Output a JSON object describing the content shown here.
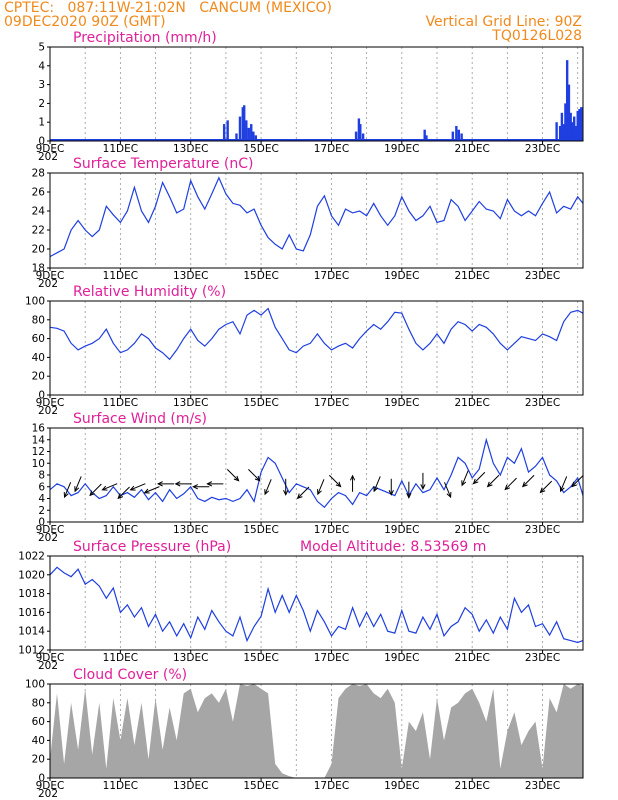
{
  "header": {
    "line1_left": "CPTEC:   087:11W-21:02N   CANCUM (MEXICO)",
    "line2_left": "09DEC2020 90Z (GMT)",
    "line2_right": "Vertical Grid Line: 90Z",
    "line3_right": "TQ0126L028"
  },
  "colors": {
    "header": "#f08a1c",
    "title": "#e0209a",
    "line": "#1f3fe0",
    "cloud": "#a6a6a6",
    "arrow": "#000000"
  },
  "x_tick_labels": [
    "9DEC",
    "11DEC",
    "13DEC",
    "15DEC",
    "17DEC",
    "19DEC",
    "21DEC",
    "23DEC"
  ],
  "x_tick_days": [
    9,
    11,
    13,
    15,
    17,
    19,
    21,
    23
  ],
  "x_range_days": [
    9,
    24.15
  ],
  "year_fragment": "202",
  "chart_data": [
    {
      "type": "bar",
      "title": "Precipitation (mm/h)",
      "ylim": [
        0,
        5
      ],
      "yticks": [
        0,
        1,
        2,
        3,
        4,
        5
      ],
      "yticks_labels": [
        "0",
        "1",
        "2",
        "3",
        "4",
        "5"
      ],
      "events": [
        {
          "x": 13.95,
          "y": 0.9
        },
        {
          "x": 14.05,
          "y": 1.1
        },
        {
          "x": 14.3,
          "y": 0.4
        },
        {
          "x": 14.4,
          "y": 1.3
        },
        {
          "x": 14.48,
          "y": 1.8
        },
        {
          "x": 14.52,
          "y": 1.9
        },
        {
          "x": 14.58,
          "y": 1.1
        },
        {
          "x": 14.65,
          "y": 0.7
        },
        {
          "x": 14.72,
          "y": 0.9
        },
        {
          "x": 14.78,
          "y": 0.5
        },
        {
          "x": 14.85,
          "y": 0.3
        },
        {
          "x": 17.7,
          "y": 0.5
        },
        {
          "x": 17.78,
          "y": 1.2
        },
        {
          "x": 17.82,
          "y": 0.9
        },
        {
          "x": 17.9,
          "y": 0.4
        },
        {
          "x": 19.65,
          "y": 0.6
        },
        {
          "x": 19.7,
          "y": 0.3
        },
        {
          "x": 20.45,
          "y": 0.5
        },
        {
          "x": 20.55,
          "y": 0.8
        },
        {
          "x": 20.62,
          "y": 0.6
        },
        {
          "x": 20.7,
          "y": 0.4
        },
        {
          "x": 23.4,
          "y": 1.0
        },
        {
          "x": 23.5,
          "y": 0.8
        },
        {
          "x": 23.55,
          "y": 1.5
        },
        {
          "x": 23.6,
          "y": 0.9
        },
        {
          "x": 23.65,
          "y": 2.0
        },
        {
          "x": 23.7,
          "y": 4.3
        },
        {
          "x": 23.75,
          "y": 3.0
        },
        {
          "x": 23.8,
          "y": 1.5
        },
        {
          "x": 23.85,
          "y": 1.0
        },
        {
          "x": 23.9,
          "y": 1.3
        },
        {
          "x": 23.95,
          "y": 0.8
        },
        {
          "x": 24.0,
          "y": 1.6
        },
        {
          "x": 24.05,
          "y": 1.7
        },
        {
          "x": 24.1,
          "y": 1.8
        }
      ]
    },
    {
      "type": "line",
      "title": "Surface Temperature (nC)",
      "ylim": [
        18,
        28
      ],
      "yticks": [
        18,
        20,
        22,
        24,
        26,
        28
      ],
      "yticks_labels": [
        "18",
        "20",
        "22",
        "24",
        "26",
        "28"
      ],
      "x": [
        9.0,
        9.2,
        9.4,
        9.6,
        9.8,
        10.0,
        10.2,
        10.4,
        10.6,
        10.8,
        11.0,
        11.2,
        11.4,
        11.6,
        11.8,
        12.0,
        12.2,
        12.4,
        12.6,
        12.8,
        13.0,
        13.2,
        13.4,
        13.6,
        13.8,
        14.0,
        14.2,
        14.4,
        14.6,
        14.8,
        15.0,
        15.2,
        15.4,
        15.6,
        15.8,
        16.0,
        16.2,
        16.4,
        16.6,
        16.8,
        17.0,
        17.2,
        17.4,
        17.6,
        17.8,
        18.0,
        18.2,
        18.4,
        18.6,
        18.8,
        19.0,
        19.2,
        19.4,
        19.6,
        19.8,
        20.0,
        20.2,
        20.4,
        20.6,
        20.8,
        21.0,
        21.2,
        21.4,
        21.6,
        21.8,
        22.0,
        22.2,
        22.4,
        22.6,
        22.8,
        23.0,
        23.2,
        23.4,
        23.6,
        23.8,
        24.0,
        24.15
      ],
      "y": [
        19.2,
        19.6,
        20.0,
        22.0,
        23.0,
        22.0,
        21.3,
        22.0,
        24.5,
        23.6,
        22.8,
        24.0,
        26.5,
        24.0,
        22.8,
        24.5,
        27.0,
        25.5,
        23.8,
        24.2,
        27.2,
        25.5,
        24.2,
        25.8,
        27.5,
        25.8,
        24.8,
        24.6,
        23.8,
        24.2,
        22.5,
        21.2,
        20.5,
        20.0,
        21.5,
        20.0,
        19.8,
        21.5,
        24.5,
        25.6,
        23.5,
        22.5,
        24.2,
        23.8,
        24.0,
        23.5,
        24.8,
        23.5,
        22.5,
        23.5,
        25.5,
        24.0,
        23.0,
        23.5,
        24.5,
        22.8,
        23.0,
        25.2,
        24.5,
        23.0,
        24.0,
        25.0,
        24.2,
        24.0,
        23.2,
        25.2,
        24.0,
        23.5,
        24.0,
        23.5,
        24.8,
        26.0,
        23.8,
        24.5,
        24.2,
        25.5,
        24.8
      ]
    },
    {
      "type": "line",
      "title": "Relative Humidity (%)",
      "ylim": [
        0,
        100
      ],
      "yticks": [
        0,
        20,
        40,
        60,
        80,
        100
      ],
      "yticks_labels": [
        "0",
        "20",
        "40",
        "60",
        "80",
        "100"
      ],
      "x": [
        9.0,
        9.2,
        9.4,
        9.6,
        9.8,
        10.0,
        10.2,
        10.4,
        10.6,
        10.8,
        11.0,
        11.2,
        11.4,
        11.6,
        11.8,
        12.0,
        12.2,
        12.4,
        12.6,
        12.8,
        13.0,
        13.2,
        13.4,
        13.6,
        13.8,
        14.0,
        14.2,
        14.4,
        14.6,
        14.8,
        15.0,
        15.2,
        15.4,
        15.6,
        15.8,
        16.0,
        16.2,
        16.4,
        16.6,
        16.8,
        17.0,
        17.2,
        17.4,
        17.6,
        17.8,
        18.0,
        18.2,
        18.4,
        18.6,
        18.8,
        19.0,
        19.2,
        19.4,
        19.6,
        19.8,
        20.0,
        20.2,
        20.4,
        20.6,
        20.8,
        21.0,
        21.2,
        21.4,
        21.6,
        21.8,
        22.0,
        22.2,
        22.4,
        22.6,
        22.8,
        23.0,
        23.2,
        23.4,
        23.6,
        23.8,
        24.0,
        24.15
      ],
      "y": [
        72,
        71,
        68,
        55,
        48,
        52,
        55,
        60,
        70,
        55,
        45,
        48,
        55,
        65,
        60,
        50,
        45,
        38,
        48,
        60,
        70,
        58,
        52,
        60,
        70,
        75,
        78,
        65,
        85,
        90,
        85,
        92,
        72,
        60,
        48,
        45,
        52,
        55,
        65,
        55,
        48,
        52,
        55,
        50,
        60,
        68,
        75,
        70,
        78,
        88,
        87,
        70,
        55,
        48,
        55,
        65,
        55,
        70,
        78,
        75,
        68,
        75,
        72,
        65,
        55,
        48,
        55,
        62,
        60,
        58,
        65,
        62,
        58,
        78,
        88,
        90,
        87
      ]
    },
    {
      "type": "line",
      "title": "Surface Wind (m/s)",
      "ylim": [
        0,
        16
      ],
      "yticks": [
        0,
        2,
        4,
        6,
        8,
        10,
        12,
        14,
        16
      ],
      "yticks_labels": [
        "0",
        "2",
        "4",
        "6",
        "8",
        "10",
        "12",
        "14",
        "16"
      ],
      "x": [
        9.0,
        9.2,
        9.4,
        9.6,
        9.8,
        10.0,
        10.2,
        10.4,
        10.6,
        10.8,
        11.0,
        11.2,
        11.4,
        11.6,
        11.8,
        12.0,
        12.2,
        12.4,
        12.6,
        12.8,
        13.0,
        13.2,
        13.4,
        13.6,
        13.8,
        14.0,
        14.2,
        14.4,
        14.6,
        14.8,
        15.0,
        15.2,
        15.4,
        15.6,
        15.8,
        16.0,
        16.2,
        16.4,
        16.6,
        16.8,
        17.0,
        17.2,
        17.4,
        17.6,
        17.8,
        18.0,
        18.2,
        18.4,
        18.6,
        18.8,
        19.0,
        19.2,
        19.4,
        19.6,
        19.8,
        20.0,
        20.2,
        20.4,
        20.6,
        20.8,
        21.0,
        21.2,
        21.4,
        21.6,
        21.8,
        22.0,
        22.2,
        22.4,
        22.6,
        22.8,
        23.0,
        23.2,
        23.4,
        23.6,
        23.8,
        24.0,
        24.15
      ],
      "y": [
        5.5,
        6.5,
        6.0,
        4.5,
        5.0,
        6.5,
        5.0,
        4.0,
        4.5,
        6.0,
        4.5,
        5.0,
        4.2,
        5.5,
        3.8,
        5.0,
        3.5,
        5.5,
        4.0,
        4.8,
        6.0,
        4.0,
        3.5,
        4.2,
        3.8,
        4.0,
        3.5,
        4.0,
        5.5,
        3.5,
        8.5,
        11.0,
        10.0,
        7.5,
        5.0,
        6.5,
        6.0,
        5.5,
        3.5,
        2.5,
        4.0,
        5.0,
        4.5,
        3.0,
        5.0,
        4.5,
        6.0,
        5.5,
        5.0,
        4.5,
        7.0,
        4.5,
        6.5,
        5.0,
        5.5,
        7.5,
        5.5,
        8.0,
        11.0,
        10.0,
        7.5,
        9.0,
        14.0,
        10.0,
        8.0,
        11.0,
        10.0,
        12.5,
        8.5,
        9.5,
        11.0,
        8.0,
        7.0,
        5.0,
        6.0,
        7.5,
        4.5
      ],
      "arrows": [
        {
          "x": 9.5,
          "speed": 5.5,
          "dir": "SSW"
        },
        {
          "x": 9.8,
          "speed": 6.5,
          "dir": "SSW"
        },
        {
          "x": 10.3,
          "speed": 5.5,
          "dir": "SW"
        },
        {
          "x": 10.7,
          "speed": 6,
          "dir": "WSW"
        },
        {
          "x": 11.1,
          "speed": 5,
          "dir": "SW"
        },
        {
          "x": 11.5,
          "speed": 6,
          "dir": "WSW"
        },
        {
          "x": 11.9,
          "speed": 5.5,
          "dir": "WSW"
        },
        {
          "x": 12.3,
          "speed": 6.5,
          "dir": "W"
        },
        {
          "x": 12.8,
          "speed": 6.5,
          "dir": "W"
        },
        {
          "x": 13.3,
          "speed": 6,
          "dir": "W"
        },
        {
          "x": 13.7,
          "speed": 6.5,
          "dir": "W"
        },
        {
          "x": 14.2,
          "speed": 8,
          "dir": "SE"
        },
        {
          "x": 14.8,
          "speed": 8,
          "dir": "SE"
        },
        {
          "x": 15.2,
          "speed": 6,
          "dir": "SSW"
        },
        {
          "x": 15.7,
          "speed": 6,
          "dir": "S"
        },
        {
          "x": 16.2,
          "speed": 5,
          "dir": "SW"
        },
        {
          "x": 16.7,
          "speed": 6,
          "dir": "SSW"
        },
        {
          "x": 17.1,
          "speed": 7,
          "dir": "SE"
        },
        {
          "x": 17.6,
          "speed": 6.5,
          "dir": "N"
        },
        {
          "x": 18.3,
          "speed": 6.5,
          "dir": "SSW"
        },
        {
          "x": 18.7,
          "speed": 6,
          "dir": "S"
        },
        {
          "x": 19.2,
          "speed": 5.5,
          "dir": "S"
        },
        {
          "x": 19.6,
          "speed": 7,
          "dir": "S"
        },
        {
          "x": 20.3,
          "speed": 5.5,
          "dir": "SSE"
        },
        {
          "x": 20.8,
          "speed": 7.5,
          "dir": "SSW"
        },
        {
          "x": 21.2,
          "speed": 7.5,
          "dir": "SW"
        },
        {
          "x": 21.6,
          "speed": 7,
          "dir": "SW"
        },
        {
          "x": 22.1,
          "speed": 6.5,
          "dir": "SW"
        },
        {
          "x": 22.6,
          "speed": 7,
          "dir": "SW"
        },
        {
          "x": 23.1,
          "speed": 6,
          "dir": "SW"
        },
        {
          "x": 23.6,
          "speed": 6.5,
          "dir": "SSW"
        },
        {
          "x": 24.0,
          "speed": 7,
          "dir": "SW"
        }
      ]
    },
    {
      "type": "line",
      "title": "Surface Pressure (hPa)",
      "annotation": "Model Altitude: 8.53569 m",
      "ylim": [
        1012,
        1022
      ],
      "yticks": [
        1012,
        1014,
        1016,
        1018,
        1020,
        1022
      ],
      "yticks_labels": [
        "1012",
        "1014",
        "1016",
        "1018",
        "1020",
        "1022"
      ],
      "x": [
        9.0,
        9.2,
        9.4,
        9.6,
        9.8,
        10.0,
        10.2,
        10.4,
        10.6,
        10.8,
        11.0,
        11.2,
        11.4,
        11.6,
        11.8,
        12.0,
        12.2,
        12.4,
        12.6,
        12.8,
        13.0,
        13.2,
        13.4,
        13.6,
        13.8,
        14.0,
        14.2,
        14.4,
        14.6,
        14.8,
        15.0,
        15.2,
        15.4,
        15.6,
        15.8,
        16.0,
        16.2,
        16.4,
        16.6,
        16.8,
        17.0,
        17.2,
        17.4,
        17.6,
        17.8,
        18.0,
        18.2,
        18.4,
        18.6,
        18.8,
        19.0,
        19.2,
        19.4,
        19.6,
        19.8,
        20.0,
        20.2,
        20.4,
        20.6,
        20.8,
        21.0,
        21.2,
        21.4,
        21.6,
        21.8,
        22.0,
        22.2,
        22.4,
        22.6,
        22.8,
        23.0,
        23.2,
        23.4,
        23.6,
        23.8,
        24.0,
        24.15
      ],
      "y": [
        1020.0,
        1020.8,
        1020.2,
        1019.8,
        1020.6,
        1019.0,
        1019.5,
        1018.8,
        1017.5,
        1018.6,
        1016.0,
        1016.8,
        1015.5,
        1016.5,
        1014.5,
        1015.8,
        1014.0,
        1015.0,
        1013.5,
        1014.8,
        1013.3,
        1015.5,
        1014.2,
        1016.2,
        1015.0,
        1014.0,
        1013.5,
        1015.5,
        1013.0,
        1014.5,
        1015.6,
        1018.5,
        1016.0,
        1017.8,
        1016.0,
        1017.8,
        1016.2,
        1014.0,
        1016.2,
        1015.0,
        1013.5,
        1014.5,
        1014.2,
        1016.5,
        1014.5,
        1016.0,
        1014.5,
        1015.8,
        1014.0,
        1013.8,
        1016.2,
        1014.0,
        1013.8,
        1015.5,
        1014.2,
        1015.8,
        1013.5,
        1014.5,
        1015.0,
        1016.5,
        1015.8,
        1014.0,
        1015.2,
        1013.8,
        1015.5,
        1014.2,
        1017.5,
        1016.0,
        1016.8,
        1014.5,
        1014.8,
        1013.6,
        1015.0,
        1013.2,
        1013.0,
        1012.8,
        1013.0
      ]
    },
    {
      "type": "area",
      "title": "Cloud Cover (%)",
      "ylim": [
        0,
        100
      ],
      "yticks": [
        0,
        20,
        40,
        60,
        80,
        100
      ],
      "yticks_labels": [
        "0",
        "20",
        "40",
        "60",
        "80",
        "100"
      ],
      "x": [
        9.0,
        9.2,
        9.4,
        9.6,
        9.8,
        10.0,
        10.2,
        10.4,
        10.6,
        10.8,
        11.0,
        11.2,
        11.4,
        11.6,
        11.8,
        12.0,
        12.2,
        12.4,
        12.6,
        12.8,
        13.0,
        13.2,
        13.4,
        13.6,
        13.8,
        14.0,
        14.2,
        14.4,
        14.6,
        14.8,
        15.0,
        15.2,
        15.4,
        15.6,
        15.8,
        16.0,
        16.2,
        16.4,
        16.6,
        16.8,
        17.0,
        17.2,
        17.4,
        17.6,
        17.8,
        18.0,
        18.2,
        18.4,
        18.6,
        18.8,
        19.0,
        19.2,
        19.4,
        19.6,
        19.8,
        20.0,
        20.2,
        20.4,
        20.6,
        20.8,
        21.0,
        21.2,
        21.4,
        21.6,
        21.8,
        22.0,
        22.2,
        22.4,
        22.6,
        22.8,
        23.0,
        23.2,
        23.4,
        23.6,
        23.8,
        24.0,
        24.15
      ],
      "y": [
        20,
        90,
        15,
        80,
        30,
        95,
        25,
        80,
        10,
        85,
        40,
        85,
        35,
        80,
        20,
        85,
        30,
        75,
        40,
        90,
        95,
        70,
        85,
        90,
        80,
        95,
        60,
        100,
        98,
        100,
        95,
        90,
        15,
        5,
        2,
        0,
        0,
        0,
        0,
        0,
        15,
        85,
        95,
        100,
        98,
        100,
        90,
        85,
        95,
        80,
        10,
        60,
        50,
        70,
        20,
        85,
        40,
        75,
        80,
        90,
        95,
        80,
        60,
        95,
        10,
        50,
        70,
        35,
        50,
        60,
        10,
        85,
        70,
        100,
        95,
        100,
        98
      ]
    }
  ]
}
